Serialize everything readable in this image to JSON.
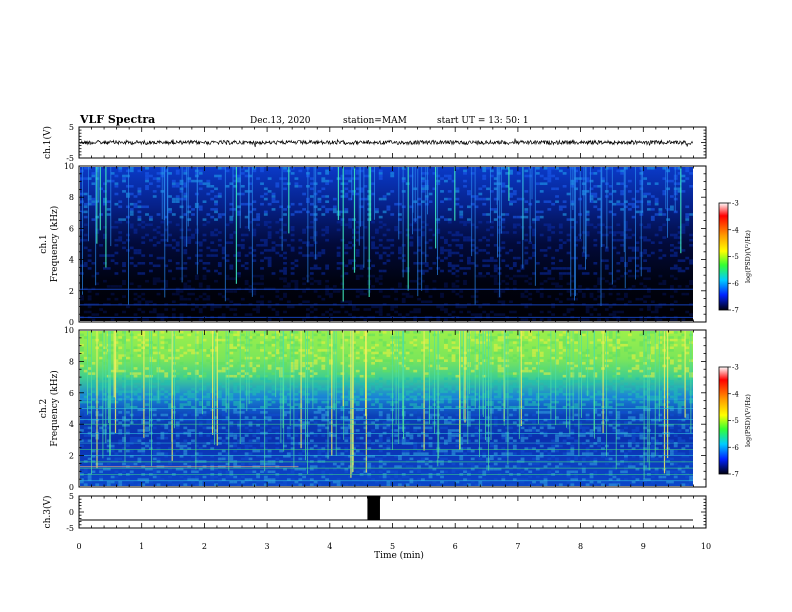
{
  "header": {
    "title": "VLF Spectra",
    "date": "Dec.13, 2020",
    "station": "station=MAM",
    "start": "start  UT =   13: 50: 1"
  },
  "chart_data": [
    {
      "type": "line",
      "panel": "ch1-waveform",
      "ylabel": "ch.1(V)",
      "ylim": [
        -5,
        5
      ],
      "yticks": [
        "5",
        "-5"
      ],
      "xlim": [
        0,
        10
      ],
      "baseline_v": 0,
      "color": "#000000"
    },
    {
      "type": "heatmap",
      "panel": "ch1-spectrogram",
      "ylabel": "ch.1\nFrequency (kHz)",
      "ylabel_top": "ch.1",
      "ylabel_main": "Frequency (kHz)",
      "ylim": [
        0,
        10
      ],
      "yticks": [
        "0",
        "2",
        "4",
        "6",
        "8",
        "10"
      ],
      "xlim": [
        0,
        10
      ],
      "colorbar": {
        "label": "log(PSD)(V²/Hz)",
        "ticks": [
          "-3",
          "-4",
          "-5",
          "-6",
          "-7"
        ],
        "range": [
          -7,
          -3
        ]
      }
    },
    {
      "type": "heatmap",
      "panel": "ch2-spectrogram",
      "ylabel": "ch.2\nFrequency (kHz)",
      "ylabel_top": "ch.2",
      "ylabel_main": "Frequency (kHz)",
      "ylim": [
        0,
        10
      ],
      "yticks": [
        "0",
        "2",
        "4",
        "6",
        "8",
        "10"
      ],
      "xlim": [
        0,
        10
      ],
      "colorbar": {
        "label": "log(PSD)(V²/Hz)",
        "ticks": [
          "-3",
          "-4",
          "-5",
          "-6",
          "-7"
        ],
        "range": [
          -7,
          -3
        ]
      }
    },
    {
      "type": "line",
      "panel": "ch3-waveform",
      "ylabel": "ch.3(V)",
      "ylim": [
        -5,
        5
      ],
      "yticks": [
        "5",
        "0",
        "-5"
      ],
      "xlim": [
        0,
        10
      ],
      "baseline_v": -2.5,
      "pulse": {
        "x_start": 4.6,
        "x_end": 4.8,
        "y_low": -2.5,
        "y_high": 5
      }
    }
  ],
  "xaxis": {
    "label": "Time (min)",
    "ticks": [
      "0",
      "1",
      "2",
      "3",
      "4",
      "5",
      "6",
      "7",
      "8",
      "9",
      "10"
    ],
    "range": [
      0,
      10
    ]
  },
  "colors": {
    "cb_stops": [
      "#ff0000",
      "#ff8000",
      "#ffff00",
      "#00ff00",
      "#00c0c0",
      "#0000ff",
      "#000000"
    ]
  }
}
